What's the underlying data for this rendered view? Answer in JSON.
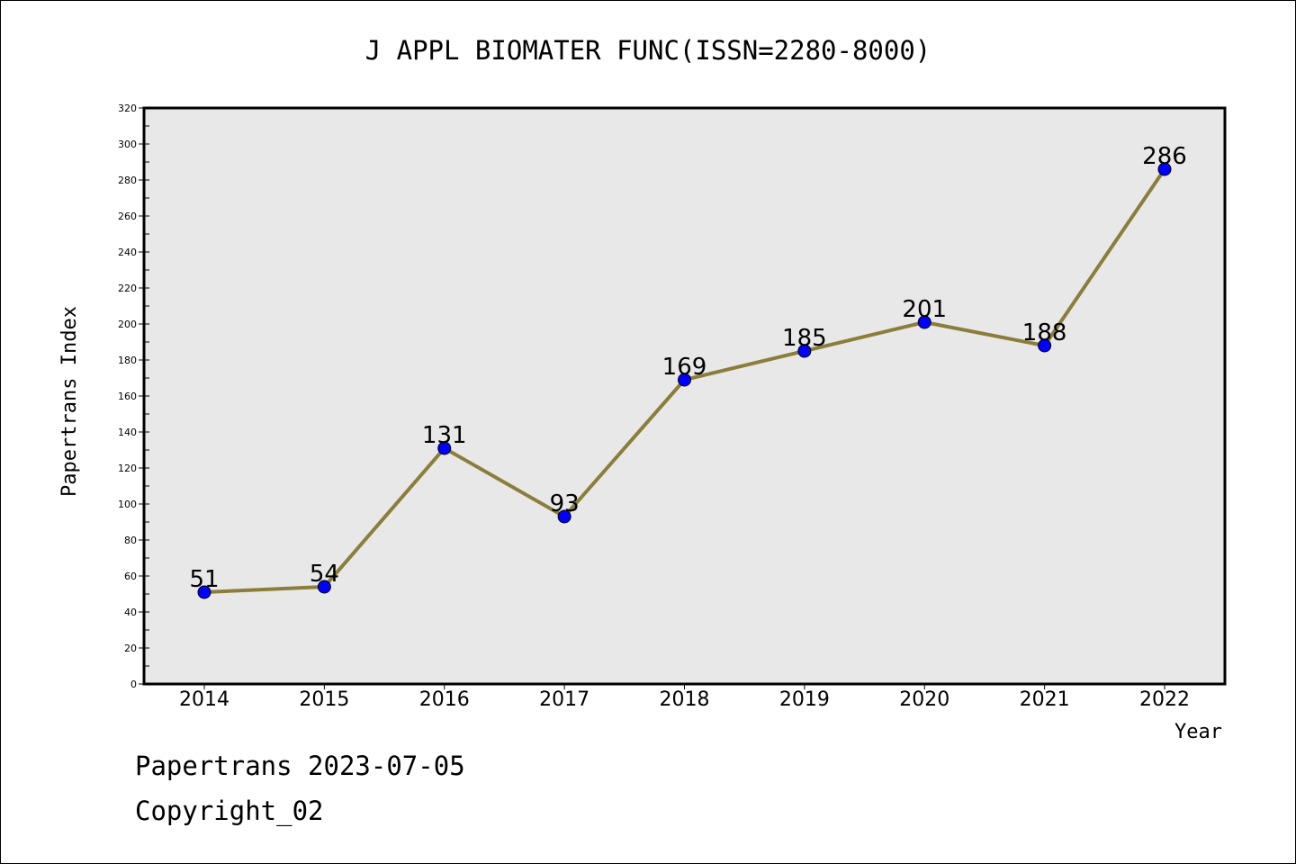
{
  "chart_data": {
    "type": "line",
    "title": "J APPL BIOMATER FUNC(ISSN=2280-8000)",
    "xlabel": "Year",
    "ylabel": "Papertrans Index",
    "categories": [
      "2014",
      "2015",
      "2016",
      "2017",
      "2018",
      "2019",
      "2020",
      "2021",
      "2022"
    ],
    "series": [
      {
        "values": [
          51,
          54,
          131,
          93,
          169,
          185,
          201,
          188,
          286
        ],
        "line_color": "#8B7D3A",
        "marker_color": "#0000FF"
      }
    ],
    "data_labels": [
      "51",
      "54",
      "131",
      "93",
      "169",
      "185",
      "201",
      "188",
      "286"
    ],
    "ylim": [
      0,
      320
    ],
    "yticks": [
      "0",
      "20",
      "40",
      "60",
      "80",
      "100",
      "120",
      "140",
      "160",
      "180",
      "200",
      "220",
      "240",
      "260",
      "280",
      "300",
      "320"
    ],
    "plot_background": "#E8E8E8",
    "grid": false,
    "legend": "none"
  },
  "footer": {
    "date_line": "Papertrans 2023-07-05",
    "copyright_line": "Copyright_02"
  }
}
